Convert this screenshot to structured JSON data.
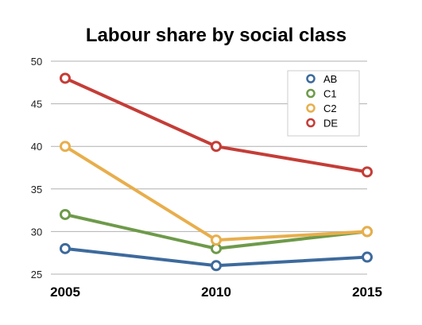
{
  "chart_data": {
    "type": "line",
    "title": "Labour share by social class",
    "xlabel": "",
    "ylabel": "",
    "x": [
      "2005",
      "2010",
      "2015"
    ],
    "ylim": [
      25,
      50
    ],
    "yticks": [
      "25",
      "30",
      "35",
      "40",
      "45",
      "50"
    ],
    "grid": "horizontal",
    "legend_position": "top-right",
    "series": [
      {
        "name": "AB",
        "values": [
          28,
          26,
          27
        ],
        "color": "#3d6a9c"
      },
      {
        "name": "C1",
        "values": [
          32,
          28,
          30
        ],
        "color": "#6e9a4a"
      },
      {
        "name": "C2",
        "values": [
          40,
          29,
          30
        ],
        "color": "#e8ae4c"
      },
      {
        "name": "DE",
        "values": [
          48,
          40,
          37
        ],
        "color": "#c43d37"
      }
    ]
  }
}
